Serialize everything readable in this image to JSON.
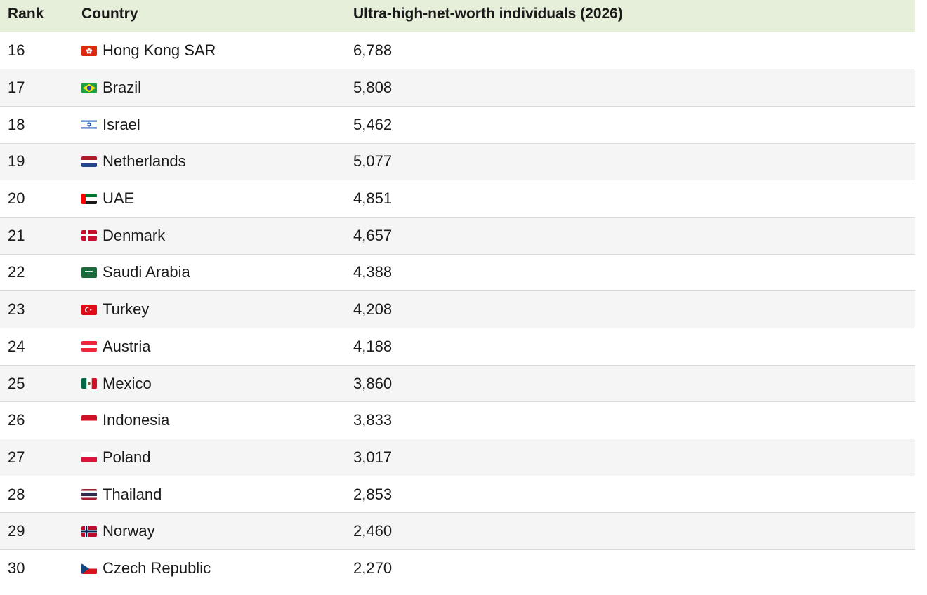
{
  "table": {
    "headers": {
      "rank": "Rank",
      "country": "Country",
      "value": "Ultra-high-net-worth individuals (2026)"
    },
    "rows": [
      {
        "rank": "16",
        "country": "Hong Kong SAR",
        "value": "6,788",
        "flag": "hong-kong-flag-icon"
      },
      {
        "rank": "17",
        "country": "Brazil",
        "value": "5,808",
        "flag": "brazil-flag-icon"
      },
      {
        "rank": "18",
        "country": "Israel",
        "value": "5,462",
        "flag": "israel-flag-icon"
      },
      {
        "rank": "19",
        "country": "Netherlands",
        "value": "5,077",
        "flag": "netherlands-flag-icon"
      },
      {
        "rank": "20",
        "country": "UAE",
        "value": "4,851",
        "flag": "uae-flag-icon"
      },
      {
        "rank": "21",
        "country": "Denmark",
        "value": "4,657",
        "flag": "denmark-flag-icon"
      },
      {
        "rank": "22",
        "country": "Saudi Arabia",
        "value": "4,388",
        "flag": "saudi-arabia-flag-icon"
      },
      {
        "rank": "23",
        "country": "Turkey",
        "value": "4,208",
        "flag": "turkey-flag-icon"
      },
      {
        "rank": "24",
        "country": "Austria",
        "value": "4,188",
        "flag": "austria-flag-icon"
      },
      {
        "rank": "25",
        "country": "Mexico",
        "value": "3,860",
        "flag": "mexico-flag-icon"
      },
      {
        "rank": "26",
        "country": "Indonesia",
        "value": "3,833",
        "flag": "indonesia-flag-icon"
      },
      {
        "rank": "27",
        "country": "Poland",
        "value": "3,017",
        "flag": "poland-flag-icon"
      },
      {
        "rank": "28",
        "country": "Thailand",
        "value": "2,853",
        "flag": "thailand-flag-icon"
      },
      {
        "rank": "29",
        "country": "Norway",
        "value": "2,460",
        "flag": "norway-flag-icon"
      },
      {
        "rank": "30",
        "country": "Czech Republic",
        "value": "2,270",
        "flag": "czech-republic-flag-icon"
      }
    ]
  },
  "colors": {
    "header_bg": "#e6efd9",
    "stripe_bg": "#f5f5f5",
    "row_border": "#d9d9d9"
  }
}
